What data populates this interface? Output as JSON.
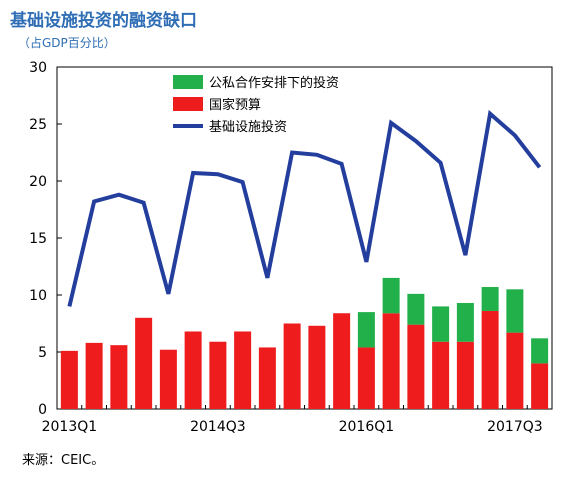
{
  "title": "基础设施投资的融资缺口",
  "subtitle": "（占GDP百分比）",
  "source": "来源：CEIC。",
  "colors": {
    "title": "#2f6eb5",
    "ppp": "#22b04a",
    "budget": "#ee1c1c",
    "infra_line": "#233e9d"
  },
  "chart_data": {
    "type": "bar",
    "ylim": [
      0,
      30
    ],
    "yticks": [
      "0",
      "5",
      "10",
      "15",
      "20",
      "25",
      "30"
    ],
    "categories": [
      "2013Q1",
      "2013Q2",
      "2013Q3",
      "2013Q4",
      "2014Q1",
      "2014Q2",
      "2014Q3",
      "2014Q4",
      "2015Q1",
      "2015Q2",
      "2015Q3",
      "2015Q4",
      "2016Q1",
      "2016Q2",
      "2016Q3",
      "2016Q4",
      "2017Q1",
      "2017Q2",
      "2017Q3",
      "2017Q4"
    ],
    "xtick_labels": [
      {
        "index": 0,
        "label": "2013Q1"
      },
      {
        "index": 6,
        "label": "2014Q3"
      },
      {
        "index": 12,
        "label": "2016Q1"
      },
      {
        "index": 18,
        "label": "2017Q3"
      }
    ],
    "legend_position": "top-center",
    "grid": false,
    "series": [
      {
        "name": "公私合作安排下的投资",
        "type": "stacked-bar",
        "color": "#22b04a",
        "values": [
          0,
          0,
          0,
          0,
          0,
          0,
          0,
          0,
          0,
          0,
          0,
          0,
          3.1,
          3.1,
          2.7,
          3.1,
          3.4,
          2.1,
          3.8,
          2.2
        ]
      },
      {
        "name": "国家预算",
        "type": "stacked-bar",
        "color": "#ee1c1c",
        "values": [
          5.1,
          5.8,
          5.6,
          8.0,
          5.2,
          6.8,
          5.9,
          6.8,
          5.4,
          7.5,
          7.3,
          8.4,
          5.4,
          8.4,
          7.4,
          5.9,
          5.9,
          8.6,
          6.7,
          4.0
        ]
      },
      {
        "name": "基础设施投资",
        "type": "line",
        "color": "#233e9d",
        "values": [
          9.0,
          18.2,
          18.8,
          18.1,
          10.1,
          20.7,
          20.6,
          19.9,
          11.5,
          22.5,
          22.3,
          21.5,
          12.9,
          25.1,
          23.5,
          21.6,
          13.5,
          25.9,
          24.0,
          21.2
        ]
      }
    ]
  }
}
